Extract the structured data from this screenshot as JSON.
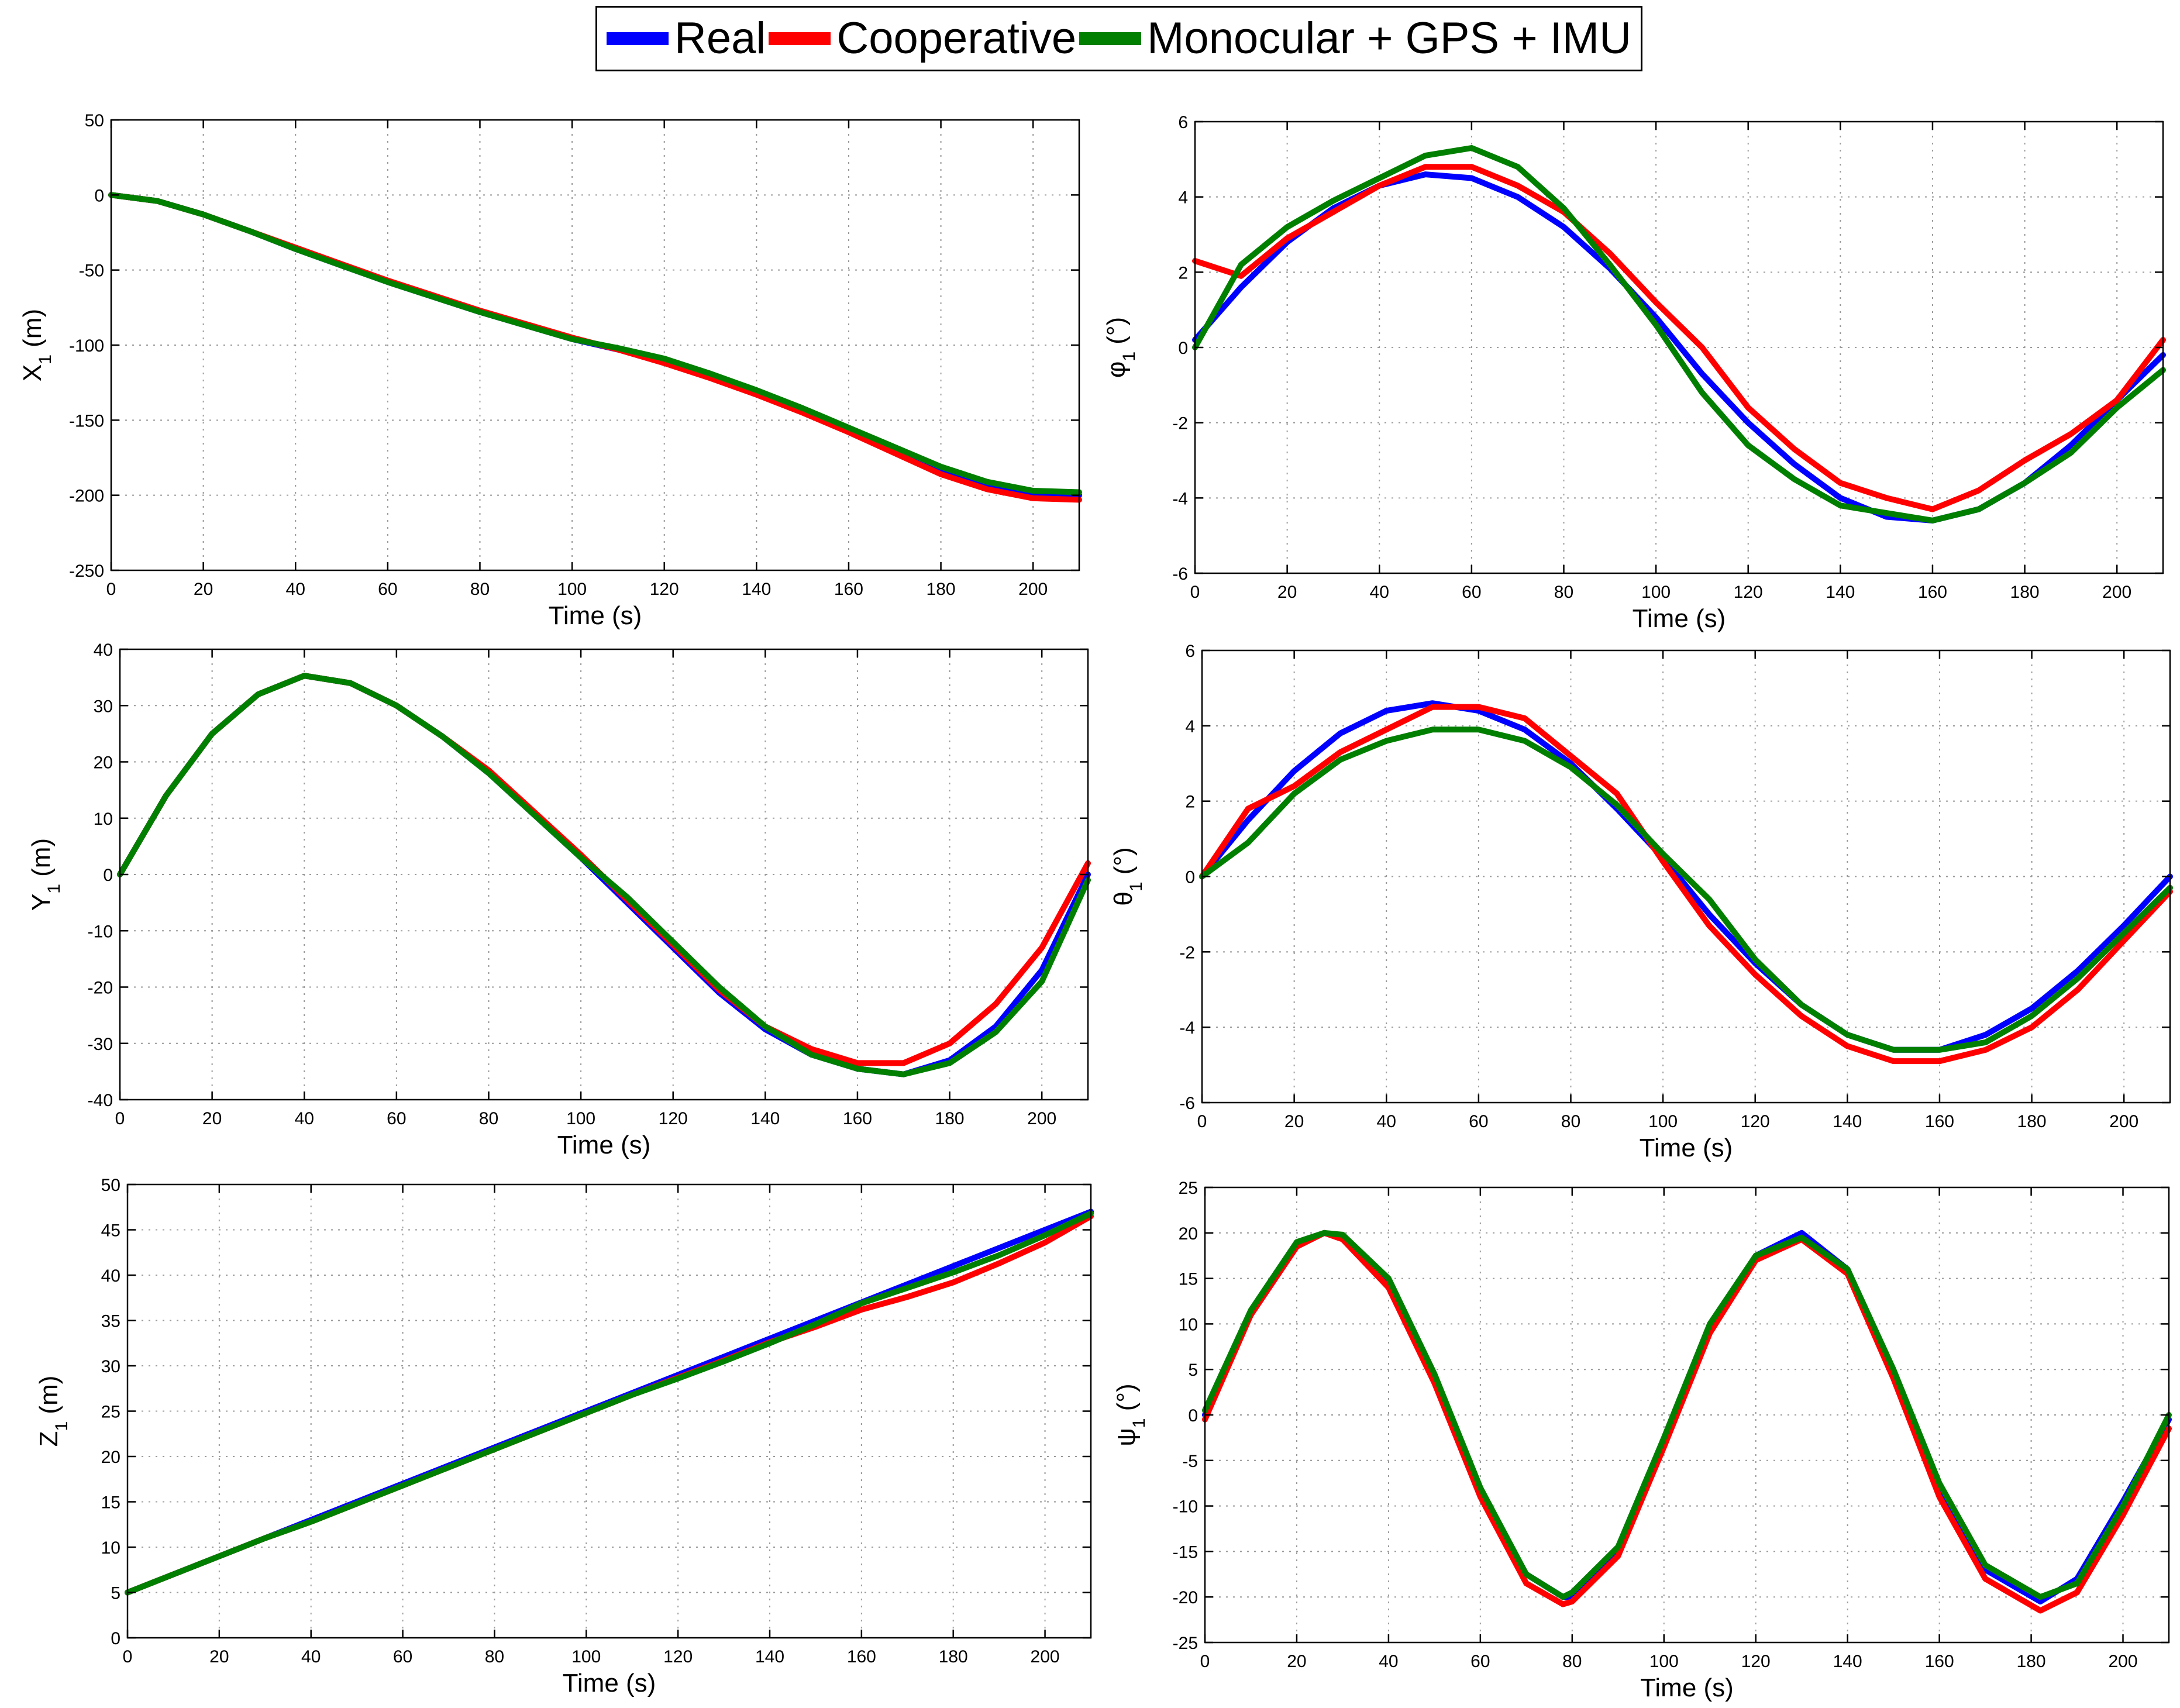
{
  "colors": {
    "real": "#0000ff",
    "cooperative": "#ff0000",
    "mono": "#007f00"
  },
  "legend": [
    {
      "label": "Real",
      "color": "#0000ff"
    },
    {
      "label": "Cooperative",
      "color": "#ff0000"
    },
    {
      "label": "Monocular + GPS + IMU",
      "color": "#007f00"
    }
  ],
  "chart_data": [
    {
      "id": "x1",
      "type": "line",
      "title": "",
      "xlabel": "Time (s)",
      "ylabel": "X",
      "ylabel_sub": "1",
      "ylabel_suffix": " (m)",
      "xlim": [
        0,
        210
      ],
      "ylim": [
        -250,
        50
      ],
      "xticks": [
        0,
        20,
        40,
        60,
        80,
        100,
        120,
        140,
        160,
        180,
        200
      ],
      "yticks": [
        -250,
        -200,
        -150,
        -100,
        -50,
        0,
        50
      ],
      "grid": true,
      "x": [
        0,
        10,
        20,
        30,
        40,
        50,
        60,
        70,
        80,
        90,
        100,
        110,
        120,
        130,
        140,
        150,
        160,
        170,
        180,
        190,
        200,
        210
      ],
      "series": [
        {
          "name": "Real",
          "color": "#0000ff",
          "values": [
            0,
            -4,
            -13,
            -24,
            -36,
            -47,
            -58,
            -68,
            -78,
            -87,
            -96,
            -103,
            -111,
            -121,
            -132,
            -144,
            -157,
            -170,
            -183,
            -193,
            -199,
            -200
          ]
        },
        {
          "name": "Cooperative",
          "color": "#ff0000",
          "values": [
            0,
            -4,
            -13,
            -24,
            -35,
            -46,
            -57,
            -67,
            -77,
            -86,
            -95,
            -103,
            -112,
            -122,
            -133,
            -145,
            -158,
            -172,
            -186,
            -196,
            -202,
            -203
          ]
        },
        {
          "name": "Monocular + GPS + IMU",
          "color": "#007f00",
          "values": [
            0,
            -4,
            -13,
            -24,
            -36,
            -47,
            -58,
            -68,
            -78,
            -87,
            -96,
            -102,
            -109,
            -119,
            -130,
            -142,
            -155,
            -168,
            -181,
            -191,
            -197,
            -198
          ]
        }
      ]
    },
    {
      "id": "phi1",
      "type": "line",
      "title": "",
      "xlabel": "Time (s)",
      "ylabel": "φ",
      "ylabel_sub": "1",
      "ylabel_suffix": " (°)",
      "xlim": [
        0,
        210
      ],
      "ylim": [
        -6,
        6
      ],
      "xticks": [
        0,
        20,
        40,
        60,
        80,
        100,
        120,
        140,
        160,
        180,
        200
      ],
      "yticks": [
        -6,
        -4,
        -2,
        0,
        2,
        4,
        6
      ],
      "grid": true,
      "x": [
        0,
        10,
        20,
        30,
        40,
        50,
        60,
        70,
        80,
        90,
        100,
        110,
        120,
        130,
        140,
        150,
        160,
        170,
        180,
        190,
        200,
        210
      ],
      "series": [
        {
          "name": "Real",
          "color": "#0000ff",
          "values": [
            0.2,
            1.6,
            2.8,
            3.7,
            4.3,
            4.6,
            4.5,
            4.0,
            3.2,
            2.1,
            0.8,
            -0.7,
            -2.0,
            -3.1,
            -4.0,
            -4.5,
            -4.6,
            -4.3,
            -3.6,
            -2.6,
            -1.4,
            -0.2
          ]
        },
        {
          "name": "Cooperative",
          "color": "#ff0000",
          "values": [
            2.3,
            1.9,
            2.9,
            3.6,
            4.3,
            4.8,
            4.8,
            4.3,
            3.6,
            2.5,
            1.2,
            0.0,
            -1.6,
            -2.7,
            -3.6,
            -4.0,
            -4.3,
            -3.8,
            -3.0,
            -2.3,
            -1.4,
            0.2
          ]
        },
        {
          "name": "Monocular + GPS + IMU",
          "color": "#007f00",
          "values": [
            0.0,
            2.2,
            3.2,
            3.9,
            4.5,
            5.1,
            5.3,
            4.8,
            3.7,
            2.2,
            0.6,
            -1.2,
            -2.6,
            -3.5,
            -4.2,
            -4.4,
            -4.6,
            -4.3,
            -3.6,
            -2.8,
            -1.6,
            -0.6
          ]
        }
      ]
    },
    {
      "id": "y1",
      "type": "line",
      "title": "",
      "xlabel": "Time (s)",
      "ylabel": "Y",
      "ylabel_sub": "1",
      "ylabel_suffix": " (m)",
      "xlim": [
        0,
        210
      ],
      "ylim": [
        -40,
        40
      ],
      "xticks": [
        0,
        20,
        40,
        60,
        80,
        100,
        120,
        140,
        160,
        180,
        200
      ],
      "yticks": [
        -40,
        -30,
        -20,
        -10,
        0,
        10,
        20,
        30,
        40
      ],
      "grid": true,
      "x": [
        0,
        10,
        20,
        30,
        40,
        50,
        60,
        70,
        80,
        90,
        100,
        110,
        120,
        130,
        140,
        150,
        160,
        170,
        180,
        190,
        200,
        210
      ],
      "series": [
        {
          "name": "Real",
          "color": "#0000ff",
          "values": [
            0,
            14,
            25,
            32,
            35.3,
            34,
            30,
            24.5,
            18,
            10.5,
            3,
            -5,
            -13,
            -21,
            -27.5,
            -32,
            -34.5,
            -35.5,
            -33,
            -27,
            -17,
            0
          ]
        },
        {
          "name": "Cooperative",
          "color": "#ff0000",
          "values": [
            0,
            14,
            25,
            32,
            35.3,
            34,
            30,
            24.5,
            18.5,
            11,
            3.5,
            -4.5,
            -12.5,
            -20.5,
            -27,
            -31,
            -33.5,
            -33.5,
            -30,
            -23,
            -13,
            2
          ]
        },
        {
          "name": "Monocular + GPS + IMU",
          "color": "#007f00",
          "values": [
            0,
            14,
            25,
            32,
            35.3,
            34,
            30,
            24.5,
            18,
            10.5,
            3,
            -4,
            -12,
            -20,
            -27,
            -32,
            -34.5,
            -35.5,
            -33.5,
            -28,
            -19,
            -1
          ]
        }
      ]
    },
    {
      "id": "theta1",
      "type": "line",
      "title": "",
      "xlabel": "Time (s)",
      "ylabel": "θ",
      "ylabel_sub": "1",
      "ylabel_suffix": " (°)",
      "xlim": [
        0,
        210
      ],
      "ylim": [
        -6,
        6
      ],
      "xticks": [
        0,
        20,
        40,
        60,
        80,
        100,
        120,
        140,
        160,
        180,
        200
      ],
      "yticks": [
        -6,
        -4,
        -2,
        0,
        2,
        4,
        6
      ],
      "grid": true,
      "x": [
        0,
        10,
        20,
        30,
        40,
        50,
        60,
        70,
        80,
        90,
        100,
        110,
        120,
        130,
        140,
        150,
        160,
        170,
        180,
        190,
        200,
        210
      ],
      "series": [
        {
          "name": "Real",
          "color": "#0000ff",
          "values": [
            0,
            1.5,
            2.8,
            3.8,
            4.4,
            4.6,
            4.4,
            3.9,
            3.0,
            1.8,
            0.5,
            -1.0,
            -2.3,
            -3.4,
            -4.2,
            -4.6,
            -4.6,
            -4.2,
            -3.5,
            -2.5,
            -1.3,
            0.0
          ]
        },
        {
          "name": "Cooperative",
          "color": "#ff0000",
          "values": [
            0,
            1.8,
            2.4,
            3.3,
            3.9,
            4.5,
            4.5,
            4.2,
            3.2,
            2.2,
            0.4,
            -1.3,
            -2.6,
            -3.7,
            -4.5,
            -4.9,
            -4.9,
            -4.6,
            -4.0,
            -3.0,
            -1.7,
            -0.4
          ]
        },
        {
          "name": "Monocular + GPS + IMU",
          "color": "#007f00",
          "values": [
            0,
            0.9,
            2.2,
            3.1,
            3.6,
            3.9,
            3.9,
            3.6,
            2.9,
            1.9,
            0.6,
            -0.6,
            -2.2,
            -3.4,
            -4.2,
            -4.6,
            -4.6,
            -4.4,
            -3.7,
            -2.7,
            -1.5,
            -0.3
          ]
        }
      ]
    },
    {
      "id": "z1",
      "type": "line",
      "title": "",
      "xlabel": "Time (s)",
      "ylabel": "Z",
      "ylabel_sub": "1",
      "ylabel_suffix": " (m)",
      "xlim": [
        0,
        210
      ],
      "ylim": [
        0,
        50
      ],
      "xticks": [
        0,
        20,
        40,
        60,
        80,
        100,
        120,
        140,
        160,
        180,
        200
      ],
      "yticks": [
        0,
        5,
        10,
        15,
        20,
        25,
        30,
        35,
        40,
        45,
        50
      ],
      "grid": true,
      "x": [
        0,
        10,
        20,
        30,
        40,
        50,
        60,
        70,
        80,
        90,
        100,
        110,
        120,
        130,
        140,
        150,
        160,
        170,
        180,
        190,
        200,
        210
      ],
      "series": [
        {
          "name": "Real",
          "color": "#0000ff",
          "values": [
            5,
            7,
            9,
            11,
            13,
            15,
            17,
            19,
            21,
            23,
            25,
            27,
            29,
            31,
            33,
            35,
            37,
            39,
            41,
            43,
            45,
            47
          ]
        },
        {
          "name": "Cooperative",
          "color": "#ff0000",
          "values": [
            5,
            7,
            9,
            11,
            12.8,
            14.8,
            16.8,
            18.8,
            20.8,
            22.8,
            24.8,
            26.8,
            28.7,
            30.6,
            32.6,
            34.3,
            36.2,
            37.6,
            39.2,
            41.3,
            43.6,
            46.5
          ]
        },
        {
          "name": "Monocular + GPS + IMU",
          "color": "#007f00",
          "values": [
            5,
            7,
            9,
            11,
            12.8,
            14.8,
            16.8,
            18.8,
            20.8,
            22.8,
            24.8,
            26.8,
            28.6,
            30.5,
            32.5,
            34.6,
            36.9,
            38.6,
            40.3,
            42.2,
            44.4,
            46.8
          ]
        }
      ]
    },
    {
      "id": "psi1",
      "type": "line",
      "title": "",
      "xlabel": "Time (s)",
      "ylabel": "ψ",
      "ylabel_sub": "1",
      "ylabel_suffix": " (°)",
      "xlim": [
        0,
        210
      ],
      "ylim": [
        -25,
        25
      ],
      "xticks": [
        0,
        20,
        40,
        60,
        80,
        100,
        120,
        140,
        160,
        180,
        200
      ],
      "yticks": [
        -25,
        -20,
        -15,
        -10,
        -5,
        0,
        5,
        10,
        15,
        20,
        25
      ],
      "grid": true,
      "x": [
        0,
        10,
        20,
        26,
        30,
        40,
        50,
        60,
        70,
        78,
        80,
        90,
        100,
        110,
        120,
        130,
        140,
        150,
        160,
        170,
        182,
        190,
        200,
        210
      ],
      "series": [
        {
          "name": "Real",
          "color": "#0000ff",
          "values": [
            0,
            11,
            18.5,
            20,
            19.5,
            14.5,
            4,
            -8.5,
            -17.5,
            -20,
            -20,
            -15,
            -3,
            9.5,
            17.5,
            20,
            16,
            4.5,
            -8,
            -17,
            -20.5,
            -18,
            -9.5,
            -0.5
          ]
        },
        {
          "name": "Cooperative",
          "color": "#ff0000",
          "values": [
            -0.5,
            11,
            18.5,
            20,
            19.3,
            14,
            3.5,
            -9,
            -18.5,
            -20.8,
            -20.5,
            -15.5,
            -3.5,
            9,
            17,
            19.3,
            15.5,
            4,
            -9,
            -18,
            -21.5,
            -19.5,
            -11,
            -1.5
          ]
        },
        {
          "name": "Monocular + GPS + IMU",
          "color": "#007f00",
          "values": [
            0.5,
            11.5,
            19,
            20,
            19.8,
            15,
            4.5,
            -8,
            -17.5,
            -20,
            -19.5,
            -14.5,
            -2.5,
            10,
            17.5,
            19.5,
            16,
            5,
            -7.5,
            -16.5,
            -20,
            -18.5,
            -10,
            0
          ]
        }
      ]
    }
  ]
}
